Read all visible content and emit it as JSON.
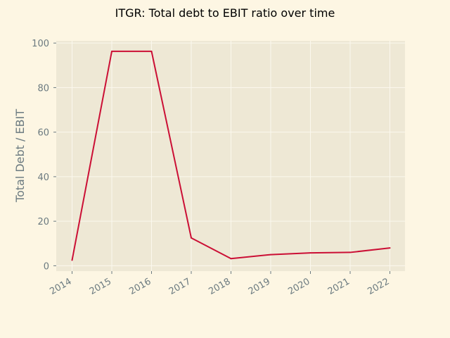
{
  "chart_data": {
    "type": "line",
    "title": "ITGR: Total debt to EBIT ratio over time",
    "xlabel": "",
    "ylabel": "Total Debt / EBIT",
    "categories": [
      "2014",
      "2015",
      "2016",
      "2017",
      "2018",
      "2019",
      "2020",
      "2021",
      "2022"
    ],
    "series": [
      {
        "values": [
          2.5,
          96.3,
          96.3,
          12.5,
          3.2,
          5.0,
          5.8,
          6.0,
          8.0
        ]
      }
    ],
    "ylim": [
      -2.4,
      101.0
    ],
    "yticks": [
      0,
      20,
      40,
      60,
      80,
      100
    ],
    "grid": true,
    "legend": "none",
    "colors": {
      "background": "#fdf6e3",
      "plot_background": "#eee8d5",
      "line": "#cb0f35",
      "grid": "#fbf8ee",
      "text": "#6b7a80"
    }
  }
}
